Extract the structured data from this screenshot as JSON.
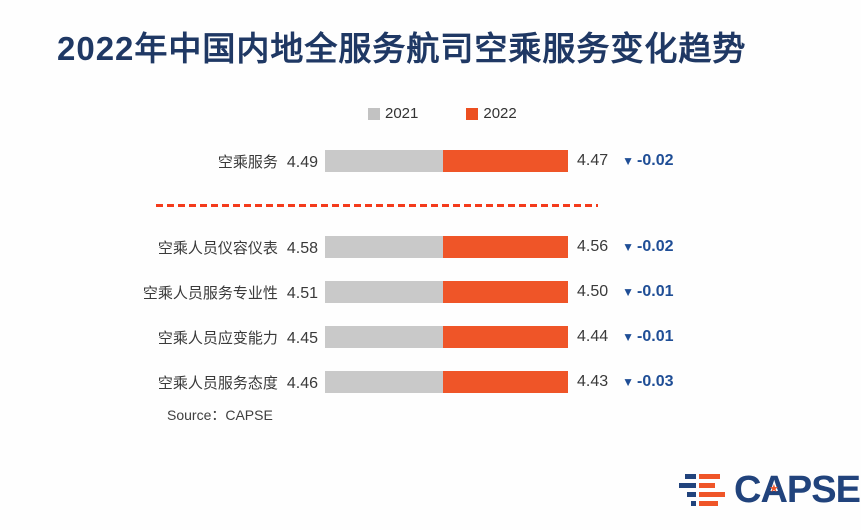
{
  "title": "2022年中国内地全服务航司空乘服务变化趋势",
  "legend": [
    {
      "label": "2021",
      "color": "#C2C2C2"
    },
    {
      "label": "2022",
      "color": "#EC4F20"
    }
  ],
  "rows": [
    {
      "label": "空乘服务",
      "v2021": "4.49",
      "v2022": "4.47",
      "change": "-0.02"
    },
    {
      "label": "空乘人员仪容仪表",
      "v2021": "4.58",
      "v2022": "4.56",
      "change": "-0.02"
    },
    {
      "label": "空乘人员服务专业性",
      "v2021": "4.51",
      "v2022": "4.50",
      "change": "-0.01"
    },
    {
      "label": "空乘人员应变能力",
      "v2021": "4.45",
      "v2022": "4.44",
      "change": "-0.01"
    },
    {
      "label": "空乘人员服务态度",
      "v2021": "4.46",
      "v2022": "4.43",
      "change": "-0.03"
    }
  ],
  "chart_data": {
    "type": "bar",
    "title": "2022年中国内地全服务航司空乘服务变化趋势",
    "categories": [
      "空乘服务",
      "空乘人员仪容仪表",
      "空乘人员服务专业性",
      "空乘人员应变能力",
      "空乘人员服务态度"
    ],
    "series": [
      {
        "name": "2021",
        "values": [
          4.49,
          4.58,
          4.51,
          4.45,
          4.46
        ]
      },
      {
        "name": "2022",
        "values": [
          4.47,
          4.56,
          4.5,
          4.44,
          4.43
        ]
      }
    ],
    "changes": [
      -0.02,
      -0.02,
      -0.01,
      -0.01,
      -0.03
    ],
    "orientation": "horizontal",
    "grid": false,
    "legend_position": "top",
    "note": "first category separated from the rest by a red dashed divider"
  },
  "icons": {
    "down_arrow": "▼"
  },
  "source": "Source：CAPSE",
  "logo": {
    "text": "CAPSE",
    "star": "★"
  },
  "colors": {
    "brand_navy": "#1F3864",
    "bar_gray": "#C9C9C9",
    "bar_orange": "#EF5528",
    "change_blue": "#1F4E96",
    "divider_red": "#F43B1C"
  }
}
